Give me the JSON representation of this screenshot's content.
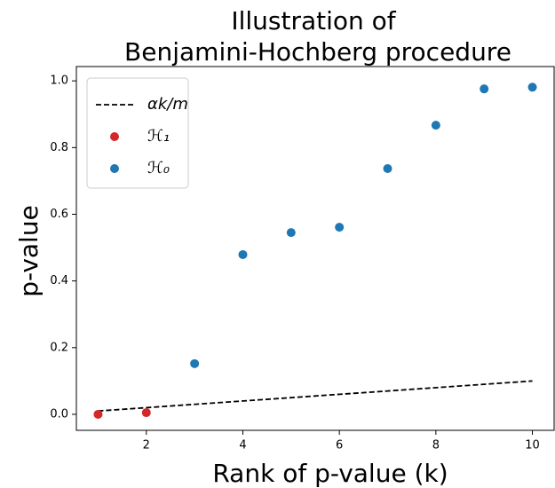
{
  "chart_data": {
    "type": "scatter",
    "title": [
      "Illustration of",
      "Benjamini-Hochberg procedure"
    ],
    "x_label": "Rank of p-value (k)",
    "y_label": "p-value",
    "xlim": [
      0.55,
      10.45
    ],
    "ylim": [
      -0.048,
      1.043
    ],
    "xticks": [
      2,
      4,
      6,
      8,
      10
    ],
    "yticks": [
      {
        "value": 0,
        "label": "0.0"
      },
      {
        "value": 0.2,
        "label": "0.2"
      },
      {
        "value": 0.4,
        "label": "0.4"
      },
      {
        "value": 0.6,
        "label": "0.6"
      },
      {
        "value": 0.8,
        "label": "0.8"
      },
      {
        "value": 1.0,
        "label": "1.0"
      }
    ],
    "legend": "upper left",
    "series": [
      {
        "name": "αk/m",
        "type": "line",
        "style": "dashed",
        "color": "#000000",
        "x": [
          1,
          10
        ],
        "values": [
          0.01,
          0.1
        ]
      },
      {
        "name": "ℋ₁",
        "type": "scatter",
        "color": "#d62728",
        "x": [
          1,
          2
        ],
        "values": [
          0.0,
          0.005
        ]
      },
      {
        "name": "ℋ₀",
        "type": "scatter",
        "color": "#1f77b4",
        "x": [
          3,
          4,
          5,
          6,
          7,
          8,
          9,
          10
        ],
        "values": [
          0.152,
          0.479,
          0.545,
          0.561,
          0.737,
          0.867,
          0.976,
          0.981
        ]
      }
    ]
  }
}
